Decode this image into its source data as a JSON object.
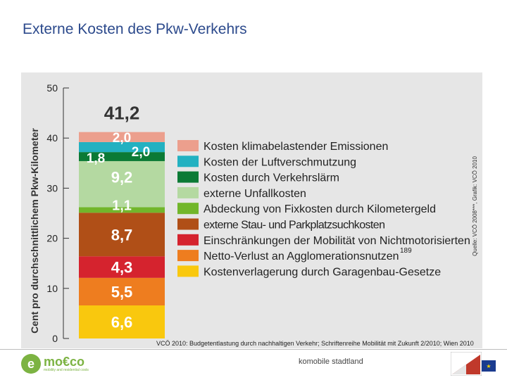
{
  "page": {
    "title": "Externe Kosten des Pkw-Verkehrs"
  },
  "chart_data": {
    "type": "bar",
    "stacked": true,
    "ylabel": "Cent pro durchschnittlichem Pkw-Kilometer",
    "ylim": [
      0,
      50
    ],
    "yticks": [
      "0",
      "10",
      "20",
      "30",
      "40",
      "50"
    ],
    "total_label": "41,2",
    "segments": [
      {
        "name": "Kostenverlagerung durch Garagenbau-Gesetze",
        "value": 6.6,
        "label": "6,6",
        "color": "#f9c80e"
      },
      {
        "name": "Netto-Verlust an Agglomerationsnutzen",
        "value": 5.5,
        "label": "5,5",
        "color": "#ee7d1f"
      },
      {
        "name": "Einschränkungen der Mobilität von Nichtmotorisierten",
        "value": 4.3,
        "label": "4,3",
        "color": "#d5232e"
      },
      {
        "name": "externe Stau- und Parkplatzsuchkosten",
        "value": 8.7,
        "label": "8,7",
        "color": "#b04f17"
      },
      {
        "name": "Abdeckung von Fixkosten durch Kilometergeld",
        "value": 1.1,
        "label": "1,1",
        "color": "#72b62b"
      },
      {
        "name": "externe Unfallkosten",
        "value": 9.2,
        "label": "9,2",
        "color": "#b4d9a1"
      },
      {
        "name": "Kosten durch Verkehrslärm",
        "value": 1.8,
        "label": "1,8",
        "color": "#0b7a35"
      },
      {
        "name": "Kosten der Luftverschmutzung",
        "value": 2.0,
        "label": "2,0",
        "color": "#23b1c1"
      },
      {
        "name": "Kosten klimabelastender Emissionen",
        "value": 2.0,
        "label": "2,0",
        "color": "#ec9f8d"
      }
    ],
    "legend_footnote": "189",
    "credit": "Quelle: VCÖ 2008***, Grafik: VCÖ 2010",
    "source": "VCÖ 2010: Budgetentlastung durch nachhaltigen Verkehr; Schriftenreihe Mobilität mit Zukunft 2/2010; Wien 2010"
  },
  "footer": {
    "center_text": "komobile stadtland",
    "logo_text": "mo€co",
    "logo_tagline": "mobility and residential costs"
  }
}
